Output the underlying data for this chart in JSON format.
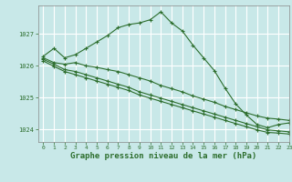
{
  "title": "Graphe pression niveau de la mer (hPa)",
  "background_color": "#c8e8e8",
  "grid_color": "#ffffff",
  "line_color": "#2d6e2d",
  "marker_color": "#2d6e2d",
  "xlim": [
    -0.5,
    23
  ],
  "ylim": [
    1023.6,
    1027.9
  ],
  "yticks": [
    1024,
    1025,
    1026,
    1027
  ],
  "xticks": [
    0,
    1,
    2,
    3,
    4,
    5,
    6,
    7,
    8,
    9,
    10,
    11,
    12,
    13,
    14,
    15,
    16,
    17,
    18,
    19,
    20,
    21,
    22,
    23
  ],
  "line1_x": [
    0,
    1,
    2,
    3,
    4,
    5,
    6,
    7,
    8,
    9,
    10,
    11,
    12,
    13,
    14,
    15,
    16,
    17,
    18,
    19,
    20,
    21,
    22,
    23
  ],
  "line1_y": [
    1026.3,
    1026.55,
    1026.25,
    1026.35,
    1026.55,
    1026.75,
    1026.95,
    1027.2,
    1027.3,
    1027.35,
    1027.45,
    1027.7,
    1027.35,
    1027.1,
    1026.65,
    1026.25,
    1025.85,
    1025.3,
    1024.8,
    1024.45,
    1024.15,
    1024.05,
    1024.15,
    1024.2
  ],
  "line2_x": [
    0,
    1,
    2,
    3,
    4,
    5,
    6,
    7,
    8,
    9,
    10,
    11,
    12,
    13,
    14,
    15,
    16,
    17,
    18,
    19,
    20,
    21,
    22,
    23
  ],
  "line2_y": [
    1026.25,
    1026.1,
    1026.05,
    1026.1,
    1026.0,
    1025.95,
    1025.88,
    1025.82,
    1025.72,
    1025.62,
    1025.52,
    1025.38,
    1025.28,
    1025.18,
    1025.05,
    1024.95,
    1024.85,
    1024.72,
    1024.62,
    1024.52,
    1024.42,
    1024.35,
    1024.32,
    1024.28
  ],
  "line3_x": [
    0,
    1,
    2,
    3,
    4,
    5,
    6,
    7,
    8,
    9,
    10,
    11,
    12,
    13,
    14,
    15,
    16,
    17,
    18,
    19,
    20,
    21,
    22,
    23
  ],
  "line3_y": [
    1026.2,
    1026.05,
    1025.88,
    1025.82,
    1025.72,
    1025.62,
    1025.52,
    1025.42,
    1025.32,
    1025.18,
    1025.08,
    1024.98,
    1024.88,
    1024.78,
    1024.68,
    1024.58,
    1024.48,
    1024.38,
    1024.28,
    1024.18,
    1024.08,
    1023.98,
    1023.95,
    1023.92
  ],
  "line4_x": [
    0,
    1,
    2,
    3,
    4,
    5,
    6,
    7,
    8,
    9,
    10,
    11,
    12,
    13,
    14,
    15,
    16,
    17,
    18,
    19,
    20,
    21,
    22,
    23
  ],
  "line4_y": [
    1026.15,
    1025.98,
    1025.82,
    1025.72,
    1025.62,
    1025.52,
    1025.42,
    1025.32,
    1025.22,
    1025.08,
    1024.98,
    1024.88,
    1024.78,
    1024.68,
    1024.58,
    1024.48,
    1024.38,
    1024.28,
    1024.18,
    1024.08,
    1023.98,
    1023.9,
    1023.88,
    1023.85
  ]
}
